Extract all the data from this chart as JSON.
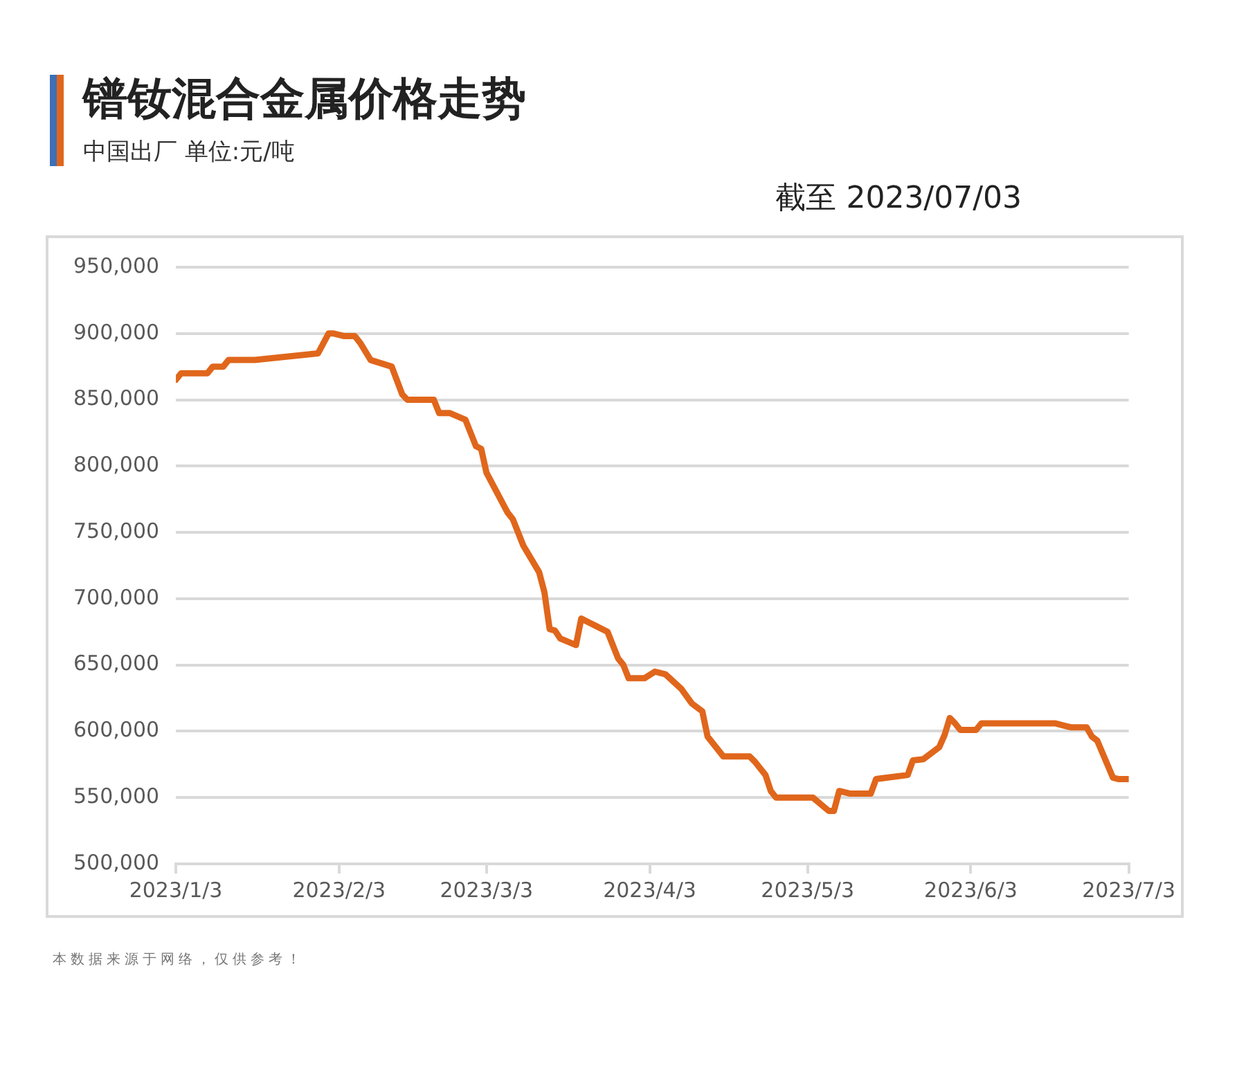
{
  "chart_data": {
    "type": "line",
    "title": "镨钕混合金属价格走势",
    "subtitle": "中国出厂  单位:元/吨",
    "annotations": [
      "截至 2023/07/03",
      "本数据来源于网络，仅供参考！"
    ],
    "x": [
      "2023-01-03",
      "2023-01-04",
      "2023-01-09",
      "2023-01-10",
      "2023-01-12",
      "2023-01-13",
      "2023-01-18",
      "2023-01-30",
      "2023-02-01",
      "2023-02-02",
      "2023-02-04",
      "2023-02-06",
      "2023-02-07",
      "2023-02-09",
      "2023-02-13",
      "2023-02-15",
      "2023-02-16",
      "2023-02-21",
      "2023-02-22",
      "2023-02-24",
      "2023-02-27",
      "2023-03-01",
      "2023-03-02",
      "2023-03-03",
      "2023-03-05",
      "2023-03-07",
      "2023-03-08",
      "2023-03-10",
      "2023-03-13",
      "2023-03-14",
      "2023-03-15",
      "2023-03-16",
      "2023-03-17",
      "2023-03-20",
      "2023-03-21",
      "2023-03-22",
      "2023-03-24",
      "2023-03-26",
      "2023-03-28",
      "2023-03-29",
      "2023-03-30",
      "2023-04-02",
      "2023-04-04",
      "2023-04-06",
      "2023-04-09",
      "2023-04-11",
      "2023-04-13",
      "2023-04-14",
      "2023-04-17",
      "2023-04-22",
      "2023-04-23",
      "2023-04-25",
      "2023-04-26",
      "2023-04-27",
      "2023-05-04",
      "2023-05-07",
      "2023-05-08",
      "2023-05-09",
      "2023-05-11",
      "2023-05-15",
      "2023-05-16",
      "2023-05-18",
      "2023-05-22",
      "2023-05-23",
      "2023-05-25",
      "2023-05-28",
      "2023-05-29",
      "2023-05-30",
      "2023-05-31",
      "2023-06-01",
      "2023-06-04",
      "2023-06-05",
      "2023-06-19",
      "2023-06-21",
      "2023-06-22",
      "2023-06-25",
      "2023-06-26",
      "2023-06-27",
      "2023-06-30",
      "2023-07-01",
      "2023-07-03"
    ],
    "series": [
      {
        "color": "#e0661c",
        "values": [
          865000,
          870000,
          870000,
          875000,
          875000,
          880000,
          880000,
          885000,
          900000,
          900000,
          898000,
          898000,
          893000,
          880000,
          875000,
          854000,
          850000,
          850000,
          840000,
          840000,
          835000,
          815000,
          813000,
          795000,
          780000,
          765000,
          760000,
          740000,
          720000,
          705000,
          677000,
          676000,
          670000,
          665000,
          685000,
          683000,
          679000,
          675000,
          655000,
          650000,
          640000,
          640000,
          645000,
          643000,
          632000,
          621000,
          615000,
          596000,
          581000,
          581000,
          577000,
          567000,
          555000,
          550000,
          550000,
          540000,
          540000,
          555000,
          553000,
          553000,
          564000,
          565000,
          567000,
          578000,
          579000,
          588000,
          597000,
          610000,
          606000,
          601000,
          601000,
          606000,
          606000,
          604000,
          603000,
          603000,
          596000,
          593000,
          565000,
          564000,
          564000
        ]
      }
    ],
    "xlim": [
      "2023-01-03",
      "2023-07-03"
    ],
    "xticks": [
      {
        "value": "2023-01-03",
        "label": "2023/1/3"
      },
      {
        "value": "2023-02-03",
        "label": "2023/2/3"
      },
      {
        "value": "2023-03-03",
        "label": "2023/3/3"
      },
      {
        "value": "2023-04-03",
        "label": "2023/4/3"
      },
      {
        "value": "2023-05-03",
        "label": "2023/5/3"
      },
      {
        "value": "2023-06-03",
        "label": "2023/6/3"
      },
      {
        "value": "2023-07-03",
        "label": "2023/7/3"
      }
    ],
    "ylim": [
      500000,
      950000
    ],
    "yticks": [
      {
        "value": 500000,
        "label": "500,000"
      },
      {
        "value": 550000,
        "label": "550,000"
      },
      {
        "value": 600000,
        "label": "600,000"
      },
      {
        "value": 650000,
        "label": "650,000"
      },
      {
        "value": 700000,
        "label": "700,000"
      },
      {
        "value": 750000,
        "label": "750,000"
      },
      {
        "value": 800000,
        "label": "800,000"
      },
      {
        "value": 850000,
        "label": "850,000"
      },
      {
        "value": 900000,
        "label": "900,000"
      },
      {
        "value": 950000,
        "label": "950,000"
      }
    ],
    "grid": "y",
    "legend": false,
    "marker": "none",
    "line_style": "solid"
  }
}
